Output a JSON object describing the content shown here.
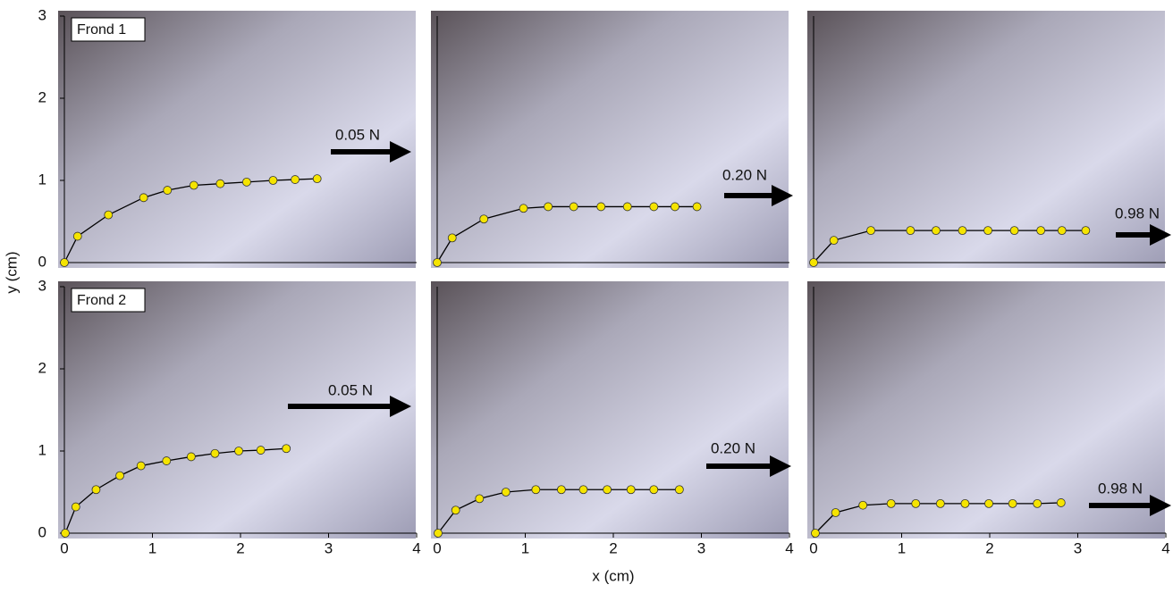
{
  "figure": {
    "x_label": "x (cm)",
    "y_label": "y (cm)"
  },
  "chart_data": [
    {
      "type": "line",
      "label": "Frond 1",
      "annotation": "0.05 N",
      "color": "#f5e400",
      "x": [
        0,
        0.15,
        0.5,
        0.9,
        1.17,
        1.47,
        1.77,
        2.07,
        2.37,
        2.62,
        2.87
      ],
      "values": [
        0,
        0.32,
        0.58,
        0.79,
        0.88,
        0.94,
        0.96,
        0.98,
        1.0,
        1.01,
        1.02
      ],
      "xlim": [
        0,
        4
      ],
      "ylim": [
        0,
        3
      ],
      "yticks": [
        0,
        1,
        2,
        3
      ]
    },
    {
      "type": "line",
      "annotation": "0.20 N",
      "color": "#f5e400",
      "x": [
        0,
        0.17,
        0.53,
        0.98,
        1.26,
        1.55,
        1.86,
        2.16,
        2.46,
        2.7,
        2.95
      ],
      "values": [
        0,
        0.3,
        0.53,
        0.66,
        0.68,
        0.68,
        0.68,
        0.68,
        0.68,
        0.68,
        0.68
      ],
      "xlim": [
        0,
        4
      ],
      "ylim": [
        0,
        3
      ]
    },
    {
      "type": "line",
      "annotation": "0.98 N",
      "color": "#f5e400",
      "x": [
        0,
        0.23,
        0.65,
        1.1,
        1.39,
        1.69,
        1.98,
        2.28,
        2.58,
        2.82,
        3.09
      ],
      "values": [
        0,
        0.27,
        0.39,
        0.39,
        0.39,
        0.39,
        0.39,
        0.39,
        0.39,
        0.39,
        0.39
      ],
      "xlim": [
        0,
        4
      ],
      "ylim": [
        0,
        3
      ]
    },
    {
      "type": "line",
      "label": "Frond 2",
      "annotation": "0.05 N",
      "color": "#f5e400",
      "x": [
        0.01,
        0.13,
        0.36,
        0.63,
        0.87,
        1.16,
        1.44,
        1.71,
        1.98,
        2.23,
        2.52
      ],
      "values": [
        0,
        0.32,
        0.53,
        0.7,
        0.82,
        0.88,
        0.93,
        0.97,
        1.0,
        1.01,
        1.03
      ],
      "xlim": [
        0,
        4
      ],
      "ylim": [
        0,
        3
      ],
      "xticks": [
        0,
        1,
        2,
        3,
        4
      ],
      "yticks": [
        0,
        1,
        2,
        3
      ]
    },
    {
      "type": "line",
      "annotation": "0.20 N",
      "color": "#f5e400",
      "x": [
        0.01,
        0.21,
        0.48,
        0.78,
        1.12,
        1.41,
        1.66,
        1.93,
        2.2,
        2.46,
        2.75
      ],
      "values": [
        0,
        0.28,
        0.42,
        0.5,
        0.53,
        0.53,
        0.53,
        0.53,
        0.53,
        0.53,
        0.53
      ],
      "xlim": [
        0,
        4
      ],
      "ylim": [
        0,
        3
      ],
      "xticks": [
        0,
        1,
        2,
        3,
        4
      ]
    },
    {
      "type": "line",
      "annotation": "0.98 N",
      "color": "#f5e400",
      "x": [
        0.02,
        0.25,
        0.56,
        0.88,
        1.16,
        1.44,
        1.72,
        1.99,
        2.26,
        2.54,
        2.81
      ],
      "values": [
        0,
        0.25,
        0.34,
        0.36,
        0.36,
        0.36,
        0.36,
        0.36,
        0.36,
        0.36,
        0.37
      ],
      "xlim": [
        0,
        4
      ],
      "ylim": [
        0,
        3
      ],
      "xticks": [
        0,
        1,
        2,
        3,
        4
      ]
    }
  ]
}
